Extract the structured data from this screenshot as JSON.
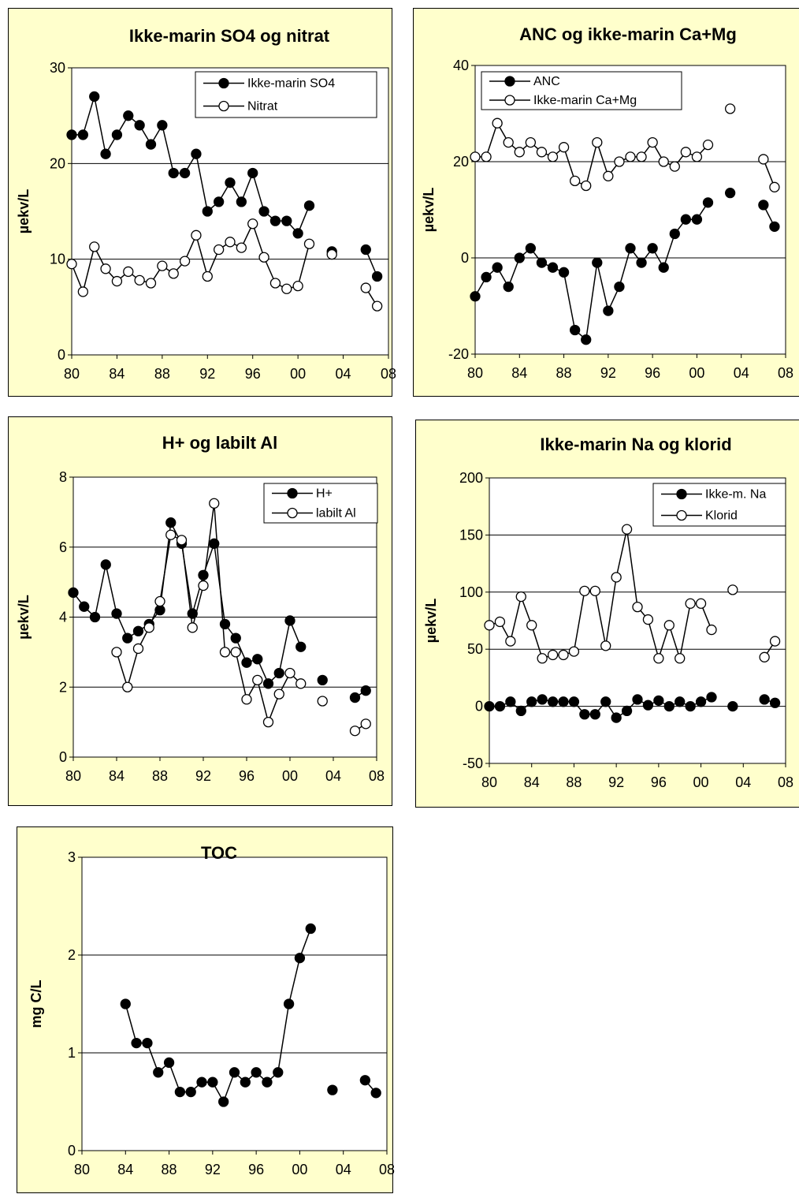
{
  "chart_data": [
    {
      "type": "line",
      "title": "Ikke-marin SO4 og nitrat",
      "ylabel": "µekv/L",
      "ylim": [
        0,
        30
      ],
      "yticks": [
        0,
        10,
        20,
        30
      ],
      "xlim": [
        1980,
        2008
      ],
      "xticks": [
        1980,
        1984,
        1988,
        1992,
        1996,
        2000,
        2004,
        2008
      ],
      "xtick_labels": [
        "80",
        "84",
        "88",
        "92",
        "96",
        "00",
        "04",
        "08"
      ],
      "legend_position": "top-right",
      "series": [
        {
          "name": "Ikke-marin SO4",
          "marker": "filled-circle",
          "x": [
            1980,
            1981,
            1982,
            1983,
            1984,
            1985,
            1986,
            1987,
            1988,
            1989,
            1990,
            1991,
            1992,
            1993,
            1994,
            1995,
            1996,
            1997,
            1998,
            1999,
            2000,
            2001,
            2003,
            2006,
            2007
          ],
          "values": [
            23,
            23,
            27,
            21,
            23,
            25,
            24,
            22,
            24,
            19,
            19,
            21,
            15,
            16,
            18,
            16,
            19,
            15,
            14,
            14,
            12.7,
            15.6,
            10.8,
            11,
            8.2
          ]
        },
        {
          "name": "Nitrat",
          "marker": "open-circle",
          "x": [
            1980,
            1981,
            1982,
            1983,
            1984,
            1985,
            1986,
            1987,
            1988,
            1989,
            1990,
            1991,
            1992,
            1993,
            1994,
            1995,
            1996,
            1997,
            1998,
            1999,
            2000,
            2001,
            2003,
            2006,
            2007
          ],
          "values": [
            9.5,
            6.6,
            11.3,
            9,
            7.7,
            8.7,
            7.8,
            7.5,
            9.3,
            8.5,
            9.8,
            12.5,
            8.2,
            11,
            11.8,
            11.2,
            13.7,
            10.2,
            7.5,
            6.9,
            7.2,
            11.6,
            10.5,
            7,
            5.1
          ]
        }
      ]
    },
    {
      "type": "line",
      "title": "ANC og ikke-marin Ca+Mg",
      "ylabel": "µekv/L",
      "ylim": [
        -20,
        40
      ],
      "yticks": [
        -20,
        0,
        20,
        40
      ],
      "xlim": [
        1980,
        2008
      ],
      "xticks": [
        1980,
        1984,
        1988,
        1992,
        1996,
        2000,
        2004,
        2008
      ],
      "xtick_labels": [
        "80",
        "84",
        "88",
        "92",
        "96",
        "00",
        "04",
        "08"
      ],
      "legend_position": "top-left",
      "series": [
        {
          "name": "ANC",
          "marker": "filled-circle",
          "x": [
            1980,
            1981,
            1982,
            1983,
            1984,
            1985,
            1986,
            1987,
            1988,
            1989,
            1990,
            1991,
            1992,
            1993,
            1994,
            1995,
            1996,
            1997,
            1998,
            1999,
            2000,
            2001,
            2003,
            2006,
            2007
          ],
          "values": [
            -8,
            -4,
            -2,
            -6,
            0,
            2,
            -1,
            -2,
            -3,
            -15,
            -17,
            -1,
            -11,
            -6,
            2,
            -1,
            2,
            -2,
            5,
            8,
            8,
            11.5,
            13.5,
            11,
            6.5
          ]
        },
        {
          "name": "Ikke-marin Ca+Mg",
          "marker": "open-circle",
          "x": [
            1980,
            1981,
            1982,
            1983,
            1984,
            1985,
            1986,
            1987,
            1988,
            1989,
            1990,
            1991,
            1992,
            1993,
            1994,
            1995,
            1996,
            1997,
            1998,
            1999,
            2000,
            2001,
            2003,
            2006,
            2007
          ],
          "values": [
            21,
            21,
            28,
            24,
            22,
            24,
            22,
            21,
            23,
            16,
            15,
            24,
            17,
            20,
            21,
            21,
            24,
            20,
            19,
            22,
            21,
            23.5,
            31,
            20.5,
            14.7
          ]
        }
      ]
    },
    {
      "type": "line",
      "title": "H+ og labilt Al",
      "ylabel": "µekv/L",
      "ylim": [
        0,
        8
      ],
      "yticks": [
        0,
        2,
        4,
        6,
        8
      ],
      "xlim": [
        1980,
        2008
      ],
      "xticks": [
        1980,
        1984,
        1988,
        1992,
        1996,
        2000,
        2004,
        2008
      ],
      "xtick_labels": [
        "80",
        "84",
        "88",
        "92",
        "96",
        "00",
        "04",
        "08"
      ],
      "legend_position": "top-right",
      "series": [
        {
          "name": "H+",
          "marker": "filled-circle",
          "x": [
            1980,
            1981,
            1982,
            1983,
            1984,
            1985,
            1986,
            1987,
            1988,
            1989,
            1990,
            1991,
            1992,
            1993,
            1994,
            1995,
            1996,
            1997,
            1998,
            1999,
            2000,
            2001,
            2003,
            2006,
            2007
          ],
          "values": [
            4.7,
            4.3,
            4,
            5.5,
            4.1,
            3.4,
            3.6,
            3.8,
            4.2,
            6.7,
            6.1,
            4.1,
            5.2,
            6.1,
            3.8,
            3.4,
            2.7,
            2.8,
            2.1,
            2.4,
            3.9,
            3.15,
            2.2,
            1.7,
            1.9
          ]
        },
        {
          "name": "labilt Al",
          "marker": "open-circle",
          "x": [
            1984,
            1985,
            1986,
            1987,
            1988,
            1989,
            1990,
            1991,
            1992,
            1993,
            1994,
            1995,
            1996,
            1997,
            1998,
            1999,
            2000,
            2001,
            2003,
            2006,
            2007
          ],
          "values": [
            3,
            2,
            3.1,
            3.7,
            4.45,
            6.35,
            6.2,
            3.7,
            4.9,
            7.25,
            3,
            3,
            1.65,
            2.2,
            1,
            1.8,
            2.4,
            2.1,
            1.6,
            0.75,
            0.95
          ]
        }
      ]
    },
    {
      "type": "line",
      "title": "Ikke-marin Na og klorid",
      "ylabel": "µekv/L",
      "ylim": [
        -50,
        200
      ],
      "yticks": [
        -50,
        0,
        50,
        100,
        150,
        200
      ],
      "xlim": [
        1980,
        2008
      ],
      "xticks": [
        1980,
        1984,
        1988,
        1992,
        1996,
        2000,
        2004,
        2008
      ],
      "xtick_labels": [
        "80",
        "84",
        "88",
        "92",
        "96",
        "00",
        "04",
        "08"
      ],
      "legend_position": "top-right",
      "series": [
        {
          "name": "Ikke-m. Na",
          "marker": "filled-circle",
          "x": [
            1980,
            1981,
            1982,
            1983,
            1984,
            1985,
            1986,
            1987,
            1988,
            1989,
            1990,
            1991,
            1992,
            1993,
            1994,
            1995,
            1996,
            1997,
            1998,
            1999,
            2000,
            2001,
            2003,
            2006,
            2007
          ],
          "values": [
            0,
            0,
            4,
            -4,
            4,
            6,
            4,
            4,
            4,
            -7,
            -7,
            4,
            -10,
            -4,
            6,
            1,
            5,
            0,
            4,
            0,
            4,
            8,
            0,
            6,
            3
          ]
        },
        {
          "name": "Klorid",
          "marker": "open-circle",
          "x": [
            1980,
            1981,
            1982,
            1983,
            1984,
            1985,
            1986,
            1987,
            1988,
            1989,
            1990,
            1991,
            1992,
            1993,
            1994,
            1995,
            1996,
            1997,
            1998,
            1999,
            2000,
            2001,
            2003,
            2006,
            2007
          ],
          "values": [
            71,
            74,
            57,
            96,
            71,
            42,
            45,
            45,
            48,
            101,
            101,
            53,
            113,
            155,
            87,
            76,
            42,
            71,
            42,
            90,
            90,
            67,
            102,
            43,
            57
          ]
        }
      ]
    },
    {
      "type": "line",
      "title": "TOC",
      "ylabel": "mg C/L",
      "ylim": [
        0,
        3
      ],
      "yticks": [
        0,
        1,
        2,
        3
      ],
      "xlim": [
        1980,
        2008
      ],
      "xticks": [
        1980,
        1984,
        1988,
        1992,
        1996,
        2000,
        2004,
        2008
      ],
      "xtick_labels": [
        "80",
        "84",
        "88",
        "92",
        "96",
        "00",
        "04",
        "08"
      ],
      "series": [
        {
          "marker": "filled-circle",
          "x": [
            1984,
            1985,
            1986,
            1987,
            1988,
            1989,
            1990,
            1991,
            1992,
            1993,
            1994,
            1995,
            1996,
            1997,
            1998,
            1999,
            2000,
            2001,
            2003,
            2006,
            2007
          ],
          "values": [
            1.5,
            1.1,
            1.1,
            0.8,
            0.9,
            0.6,
            0.6,
            0.7,
            0.7,
            0.5,
            0.8,
            0.7,
            0.8,
            0.7,
            0.8,
            1.5,
            1.97,
            2.27,
            0.62,
            0.72,
            0.59
          ]
        }
      ]
    }
  ]
}
